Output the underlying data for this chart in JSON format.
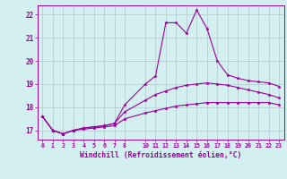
{
  "bg_color": "#d4eff0",
  "grid_color": "#b0c8cc",
  "line_color": "#990099",
  "xlabel": "Windchill (Refroidissement éolien,°C)",
  "xlabel_color": "#990099",
  "xlim": [
    -0.5,
    23.5
  ],
  "ylim": [
    16.6,
    22.4
  ],
  "yticks": [
    17,
    18,
    19,
    20,
    21,
    22
  ],
  "xticks": [
    0,
    1,
    2,
    3,
    4,
    5,
    6,
    7,
    8,
    10,
    11,
    12,
    13,
    14,
    15,
    16,
    17,
    18,
    19,
    20,
    21,
    22,
    23
  ],
  "series1_x": [
    0,
    1,
    2,
    3,
    4,
    5,
    6,
    7,
    8,
    10,
    11,
    12,
    13,
    14,
    15,
    16,
    17,
    18,
    19,
    20,
    21,
    22,
    23
  ],
  "series1_y": [
    17.6,
    17.0,
    16.85,
    17.0,
    17.1,
    17.15,
    17.2,
    17.3,
    18.1,
    19.0,
    19.35,
    21.65,
    21.65,
    21.2,
    22.2,
    21.4,
    20.0,
    19.4,
    19.25,
    19.15,
    19.1,
    19.05,
    18.9
  ],
  "series2_x": [
    0,
    1,
    2,
    3,
    4,
    5,
    6,
    7,
    8,
    10,
    11,
    12,
    13,
    14,
    15,
    16,
    17,
    18,
    19,
    20,
    21,
    22,
    23
  ],
  "series2_y": [
    17.6,
    17.0,
    16.85,
    17.0,
    17.1,
    17.15,
    17.2,
    17.3,
    17.8,
    18.3,
    18.55,
    18.7,
    18.85,
    18.95,
    19.0,
    19.05,
    19.0,
    18.95,
    18.85,
    18.75,
    18.65,
    18.55,
    18.4
  ],
  "series3_x": [
    0,
    1,
    2,
    3,
    4,
    5,
    6,
    7,
    8,
    10,
    11,
    12,
    13,
    14,
    15,
    16,
    17,
    18,
    19,
    20,
    21,
    22,
    23
  ],
  "series3_y": [
    17.6,
    17.0,
    16.85,
    17.0,
    17.05,
    17.1,
    17.15,
    17.2,
    17.5,
    17.75,
    17.85,
    17.95,
    18.05,
    18.1,
    18.15,
    18.2,
    18.2,
    18.2,
    18.2,
    18.2,
    18.2,
    18.2,
    18.1
  ]
}
